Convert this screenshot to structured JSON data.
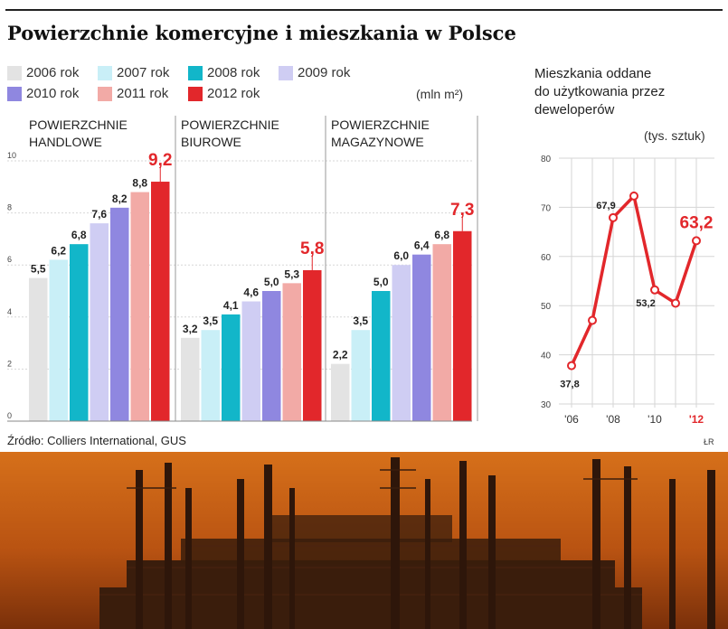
{
  "title": "Powierzchnie komercyjne i mieszkania w Polsce",
  "source": "Źródło: Colliers International, GUS",
  "credit": "ŁR",
  "legend": [
    {
      "label": "2006 rok",
      "color": "#e3e3e3"
    },
    {
      "label": "2007 rok",
      "color": "#c9eff7"
    },
    {
      "label": "2008 rok",
      "color": "#12b6c9"
    },
    {
      "label": "2009 rok",
      "color": "#cfcdf3"
    },
    {
      "label": "2010 rok",
      "color": "#8f87e0"
    },
    {
      "label": "2011 rok",
      "color": "#f2aaa6"
    },
    {
      "label": "2012 rok",
      "color": "#e2272b"
    }
  ],
  "units_left": "(mln m²)",
  "right_title": [
    "Mieszkania oddane",
    "do użytkowania przez",
    "deweloperów"
  ],
  "units_right": "(tys. sztuk)",
  "chart_data": [
    {
      "type": "bar",
      "categories": [
        "POWIERZCHNIE HANDLOWE",
        "POWIERZCHNIE BIUROWE",
        "POWIERZCHNIE MAGAZYNOWE"
      ],
      "group_titles": [
        [
          "POWIERZCHNIE",
          "HANDLOWE"
        ],
        [
          "POWIERZCHNIE",
          "BIUROWE"
        ],
        [
          "POWIERZCHNIE",
          "MAGAZYNOWE"
        ]
      ],
      "series": [
        {
          "name": "2006 rok",
          "values": [
            5.5,
            3.2,
            2.2
          ]
        },
        {
          "name": "2007 rok",
          "values": [
            6.2,
            3.5,
            3.5
          ]
        },
        {
          "name": "2008 rok",
          "values": [
            6.8,
            4.1,
            5.0
          ]
        },
        {
          "name": "2009 rok",
          "values": [
            7.6,
            4.6,
            6.0
          ]
        },
        {
          "name": "2010 rok",
          "values": [
            8.2,
            5.0,
            6.4
          ]
        },
        {
          "name": "2011 rok",
          "values": [
            8.8,
            5.3,
            6.8
          ]
        },
        {
          "name": "2012 rok",
          "values": [
            9.2,
            5.8,
            7.3
          ]
        }
      ],
      "value_labels": [
        [
          "5,5",
          "6,2",
          "6,8",
          "7,6",
          "8,2",
          "8,8",
          "9,2"
        ],
        [
          "3,2",
          "3,5",
          "4,1",
          "4,6",
          "5,0",
          "5,3",
          "5,8"
        ],
        [
          "2,2",
          "3,5",
          "5,0",
          "6,0",
          "6,4",
          "6,8",
          "7,3"
        ]
      ],
      "yticks": [
        "0",
        "2",
        "4",
        "6",
        "8",
        "10"
      ],
      "ytick_values": [
        0,
        2,
        4,
        6,
        8,
        10
      ],
      "ylim": [
        0,
        10
      ],
      "ylabel": "(mln m²)"
    },
    {
      "type": "line",
      "title": "Mieszkania oddane do użytkowania przez deweloperów",
      "ylabel": "(tys. sztuk)",
      "x": [
        2006,
        2007,
        2008,
        2009,
        2010,
        2011,
        2012
      ],
      "y": [
        37.8,
        47.0,
        67.9,
        72.3,
        53.2,
        50.5,
        63.2
      ],
      "point_labels": [
        {
          "index": 0,
          "text": "37,8"
        },
        {
          "index": 2,
          "text": "67,9"
        },
        {
          "index": 4,
          "text": "53,2"
        },
        {
          "index": 6,
          "text": "63,2"
        }
      ],
      "xtick_labels": [
        "'06",
        "'08",
        "'10",
        "'12"
      ],
      "xtick_values": [
        2006,
        2008,
        2010,
        2012
      ],
      "yticks": [
        "30",
        "40",
        "50",
        "60",
        "70",
        "80"
      ],
      "ytick_values": [
        30,
        40,
        50,
        60,
        70,
        80
      ],
      "ylim": [
        30,
        80
      ],
      "line_color": "#e2272b"
    }
  ]
}
